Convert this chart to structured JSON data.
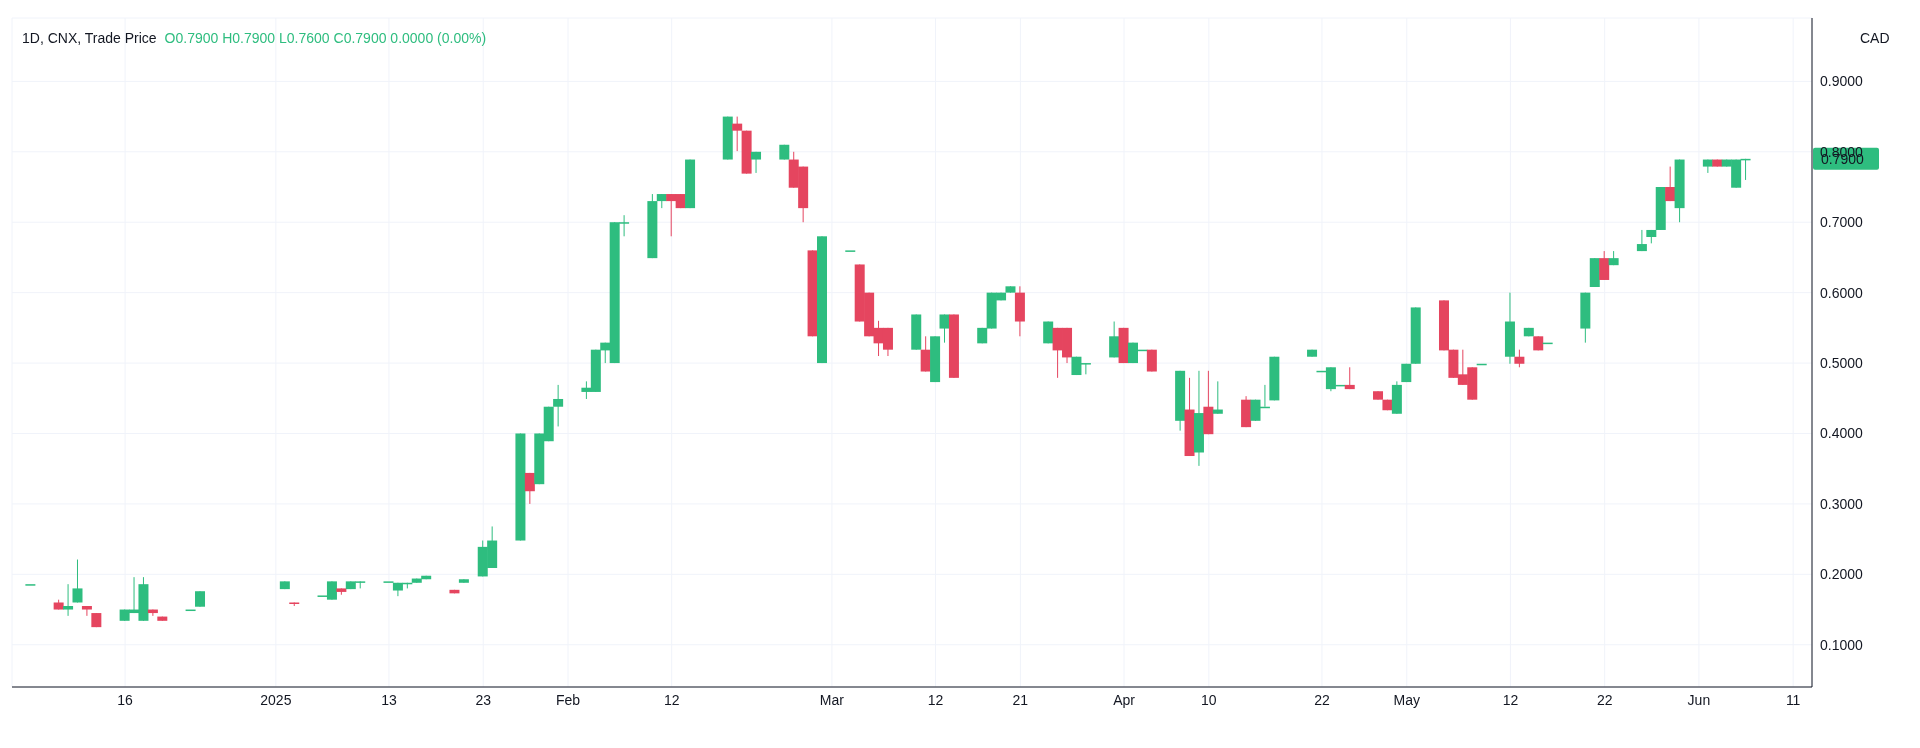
{
  "chart_data": {
    "type": "candlestick",
    "title": "1D, CNX, Trade Price",
    "subtitle": "O0.7900 H0.7900 L0.7600 C0.7900 0.0000 (0.00%)",
    "ylabel": "CAD",
    "x": [
      "2024-12-06",
      "2024-12-09",
      "2024-12-10",
      "2024-12-11",
      "2024-12-12",
      "2024-12-13",
      "2024-12-16",
      "2024-12-17",
      "2024-12-18",
      "2024-12-19",
      "2024-12-20",
      "2024-12-23",
      "2024-12-24",
      "2025-01-02",
      "2025-01-03",
      "2025-01-06",
      "2025-01-07",
      "2025-01-08",
      "2025-01-09",
      "2025-01-10",
      "2025-01-13",
      "2025-01-14",
      "2025-01-15",
      "2025-01-16",
      "2025-01-17",
      "2025-01-20",
      "2025-01-21",
      "2025-01-23",
      "2025-01-24",
      "2025-01-27",
      "2025-01-28",
      "2025-01-29",
      "2025-01-30",
      "2025-01-31",
      "2025-02-03",
      "2025-02-04",
      "2025-02-05",
      "2025-02-06",
      "2025-02-07",
      "2025-02-10",
      "2025-02-11",
      "2025-02-12",
      "2025-02-13",
      "2025-02-14",
      "2025-02-18",
      "2025-02-19",
      "2025-02-20",
      "2025-02-21",
      "2025-02-24",
      "2025-02-25",
      "2025-02-26",
      "2025-02-27",
      "2025-02-28",
      "2025-03-03",
      "2025-03-04",
      "2025-03-05",
      "2025-03-06",
      "2025-03-07",
      "2025-03-10",
      "2025-03-11",
      "2025-03-12",
      "2025-03-13",
      "2025-03-14",
      "2025-03-17",
      "2025-03-18",
      "2025-03-19",
      "2025-03-20",
      "2025-03-21",
      "2025-03-24",
      "2025-03-25",
      "2025-03-26",
      "2025-03-27",
      "2025-03-28",
      "2025-03-31",
      "2025-04-01",
      "2025-04-02",
      "2025-04-03",
      "2025-04-04",
      "2025-04-07",
      "2025-04-08",
      "2025-04-09",
      "2025-04-10",
      "2025-04-11",
      "2025-04-14",
      "2025-04-15",
      "2025-04-16",
      "2025-04-17",
      "2025-04-21",
      "2025-04-22",
      "2025-04-23",
      "2025-04-24",
      "2025-04-25",
      "2025-04-28",
      "2025-04-29",
      "2025-04-30",
      "2025-05-01",
      "2025-05-02",
      "2025-05-05",
      "2025-05-06",
      "2025-05-07",
      "2025-05-08",
      "2025-05-09",
      "2025-05-12",
      "2025-05-13",
      "2025-05-14",
      "2025-05-15",
      "2025-05-16",
      "2025-05-20",
      "2025-05-21",
      "2025-05-22",
      "2025-05-23",
      "2025-05-26",
      "2025-05-27",
      "2025-05-28",
      "2025-05-29",
      "2025-05-30",
      "2025-06-02",
      "2025-06-03",
      "2025-06-04",
      "2025-06-05",
      "2025-06-06"
    ],
    "ohlc": [
      [
        0.186,
        0.186,
        0.186,
        0.186
      ],
      [
        0.16,
        0.164,
        0.15,
        0.15
      ],
      [
        0.15,
        0.186,
        0.141,
        0.155
      ],
      [
        0.16,
        0.221,
        0.16,
        0.18
      ],
      [
        0.155,
        0.155,
        0.141,
        0.15
      ],
      [
        0.145,
        0.145,
        0.125,
        0.125
      ],
      [
        0.134,
        0.15,
        0.134,
        0.15
      ],
      [
        0.145,
        0.196,
        0.145,
        0.15
      ],
      [
        0.134,
        0.196,
        0.134,
        0.186
      ],
      [
        0.15,
        0.15,
        0.141,
        0.145
      ],
      [
        0.14,
        0.14,
        0.134,
        0.134
      ],
      [
        0.15,
        0.15,
        0.15,
        0.15
      ],
      [
        0.154,
        0.176,
        0.154,
        0.176
      ],
      [
        0.179,
        0.19,
        0.179,
        0.19
      ],
      [
        0.16,
        0.16,
        0.155,
        0.158
      ],
      [
        0.17,
        0.17,
        0.17,
        0.17
      ],
      [
        0.164,
        0.19,
        0.164,
        0.19
      ],
      [
        0.18,
        0.18,
        0.171,
        0.175
      ],
      [
        0.179,
        0.19,
        0.179,
        0.19
      ],
      [
        0.19,
        0.19,
        0.18,
        0.19
      ],
      [
        0.19,
        0.19,
        0.19,
        0.19
      ],
      [
        0.177,
        0.188,
        0.169,
        0.188
      ],
      [
        0.188,
        0.188,
        0.18,
        0.188
      ],
      [
        0.188,
        0.194,
        0.188,
        0.194
      ],
      [
        0.193,
        0.198,
        0.193,
        0.198
      ],
      [
        0.178,
        0.178,
        0.173,
        0.173
      ],
      [
        0.188,
        0.193,
        0.188,
        0.193
      ],
      [
        0.197,
        0.248,
        0.197,
        0.239
      ],
      [
        0.209,
        0.268,
        0.209,
        0.248
      ],
      [
        0.248,
        0.4,
        0.248,
        0.4
      ],
      [
        0.344,
        0.344,
        0.3,
        0.318
      ],
      [
        0.328,
        0.4,
        0.328,
        0.4
      ],
      [
        0.389,
        0.438,
        0.389,
        0.438
      ],
      [
        0.438,
        0.469,
        0.41,
        0.449
      ],
      [
        0.459,
        0.474,
        0.449,
        0.465
      ],
      [
        0.459,
        0.519,
        0.459,
        0.519
      ],
      [
        0.518,
        0.529,
        0.5,
        0.529
      ],
      [
        0.5,
        0.7,
        0.5,
        0.7
      ],
      [
        0.7,
        0.71,
        0.68,
        0.7
      ],
      [
        0.649,
        0.74,
        0.649,
        0.73
      ],
      [
        0.73,
        0.74,
        0.72,
        0.74
      ],
      [
        0.74,
        0.74,
        0.68,
        0.73
      ],
      [
        0.74,
        0.74,
        0.72,
        0.72
      ],
      [
        0.72,
        0.789,
        0.72,
        0.789
      ],
      [
        0.789,
        0.85,
        0.789,
        0.85
      ],
      [
        0.84,
        0.85,
        0.801,
        0.83
      ],
      [
        0.83,
        0.83,
        0.769,
        0.769
      ],
      [
        0.789,
        0.8,
        0.77,
        0.8
      ],
      [
        0.789,
        0.81,
        0.789,
        0.81
      ],
      [
        0.789,
        0.8,
        0.749,
        0.749
      ],
      [
        0.779,
        0.779,
        0.7,
        0.72
      ],
      [
        0.66,
        0.66,
        0.538,
        0.538
      ],
      [
        0.5,
        0.68,
        0.5,
        0.68
      ],
      [
        0.66,
        0.66,
        0.66,
        0.66
      ],
      [
        0.64,
        0.64,
        0.559,
        0.559
      ],
      [
        0.6,
        0.6,
        0.538,
        0.538
      ],
      [
        0.55,
        0.56,
        0.51,
        0.528
      ],
      [
        0.55,
        0.55,
        0.51,
        0.519
      ],
      [
        0.519,
        0.569,
        0.519,
        0.569
      ],
      [
        0.519,
        0.538,
        0.488,
        0.488
      ],
      [
        0.473,
        0.538,
        0.473,
        0.538
      ],
      [
        0.549,
        0.569,
        0.529,
        0.569
      ],
      [
        0.569,
        0.569,
        0.479,
        0.479
      ],
      [
        0.528,
        0.55,
        0.528,
        0.55
      ],
      [
        0.549,
        0.6,
        0.549,
        0.6
      ],
      [
        0.589,
        0.6,
        0.589,
        0.6
      ],
      [
        0.6,
        0.609,
        0.6,
        0.609
      ],
      [
        0.6,
        0.609,
        0.538,
        0.559
      ],
      [
        0.528,
        0.559,
        0.528,
        0.559
      ],
      [
        0.55,
        0.55,
        0.479,
        0.518
      ],
      [
        0.55,
        0.55,
        0.5,
        0.508
      ],
      [
        0.483,
        0.509,
        0.483,
        0.509
      ],
      [
        0.5,
        0.5,
        0.484,
        0.5
      ],
      [
        0.508,
        0.559,
        0.508,
        0.538
      ],
      [
        0.55,
        0.55,
        0.5,
        0.5
      ],
      [
        0.5,
        0.529,
        0.5,
        0.529
      ],
      [
        0.519,
        0.519,
        0.519,
        0.519
      ],
      [
        0.519,
        0.519,
        0.488,
        0.488
      ],
      [
        0.418,
        0.489,
        0.404,
        0.489
      ],
      [
        0.434,
        0.479,
        0.368,
        0.368
      ],
      [
        0.373,
        0.489,
        0.354,
        0.429
      ],
      [
        0.438,
        0.489,
        0.399,
        0.399
      ],
      [
        0.428,
        0.474,
        0.428,
        0.434
      ],
      [
        0.448,
        0.453,
        0.409,
        0.409
      ],
      [
        0.418,
        0.448,
        0.418,
        0.448
      ],
      [
        0.438,
        0.469,
        0.438,
        0.438
      ],
      [
        0.447,
        0.509,
        0.447,
        0.509
      ],
      [
        0.509,
        0.519,
        0.509,
        0.519
      ],
      [
        0.489,
        0.489,
        0.489,
        0.489
      ],
      [
        0.463,
        0.494,
        0.46,
        0.494
      ],
      [
        0.469,
        0.469,
        0.469,
        0.469
      ],
      [
        0.469,
        0.494,
        0.463,
        0.463
      ],
      [
        0.46,
        0.46,
        0.448,
        0.448
      ],
      [
        0.448,
        0.448,
        0.433,
        0.433
      ],
      [
        0.428,
        0.474,
        0.428,
        0.469
      ],
      [
        0.473,
        0.499,
        0.473,
        0.499
      ],
      [
        0.499,
        0.579,
        0.499,
        0.579
      ],
      [
        0.589,
        0.589,
        0.518,
        0.518
      ],
      [
        0.519,
        0.519,
        0.479,
        0.479
      ],
      [
        0.484,
        0.519,
        0.469,
        0.469
      ],
      [
        0.494,
        0.494,
        0.448,
        0.448
      ],
      [
        0.499,
        0.499,
        0.499,
        0.499
      ],
      [
        0.509,
        0.6,
        0.499,
        0.559
      ],
      [
        0.509,
        0.519,
        0.494,
        0.499
      ],
      [
        0.538,
        0.55,
        0.538,
        0.55
      ],
      [
        0.538,
        0.538,
        0.518,
        0.518
      ],
      [
        0.529,
        0.529,
        0.529,
        0.529
      ],
      [
        0.549,
        0.6,
        0.529,
        0.6
      ],
      [
        0.608,
        0.649,
        0.608,
        0.649
      ],
      [
        0.649,
        0.659,
        0.618,
        0.618
      ],
      [
        0.639,
        0.659,
        0.639,
        0.649
      ],
      [
        0.659,
        0.689,
        0.659,
        0.669
      ],
      [
        0.679,
        0.689,
        0.67,
        0.689
      ],
      [
        0.689,
        0.75,
        0.689,
        0.75
      ],
      [
        0.75,
        0.779,
        0.73,
        0.73
      ],
      [
        0.72,
        0.789,
        0.7,
        0.789
      ],
      [
        0.779,
        0.789,
        0.77,
        0.789
      ],
      [
        0.789,
        0.789,
        0.779,
        0.779
      ],
      [
        0.779,
        0.789,
        0.779,
        0.789
      ],
      [
        0.749,
        0.789,
        0.749,
        0.789
      ],
      [
        0.79,
        0.79,
        0.76,
        0.79
      ]
    ],
    "xlim": [
      "2024-12-04",
      "2025-06-13"
    ],
    "xticks": [
      {
        "value": "2024-12-16",
        "label": "16"
      },
      {
        "value": "2025-01-01",
        "label": "2025"
      },
      {
        "value": "2025-01-13",
        "label": "13"
      },
      {
        "value": "2025-01-23",
        "label": "23"
      },
      {
        "value": "2025-02-01",
        "label": "Feb"
      },
      {
        "value": "2025-02-12",
        "label": "12"
      },
      {
        "value": "2025-03-01",
        "label": "Mar"
      },
      {
        "value": "2025-03-12",
        "label": "12"
      },
      {
        "value": "2025-03-21",
        "label": "21"
      },
      {
        "value": "2025-04-01",
        "label": "Apr"
      },
      {
        "value": "2025-04-10",
        "label": "10"
      },
      {
        "value": "2025-04-22",
        "label": "22"
      },
      {
        "value": "2025-05-01",
        "label": "May"
      },
      {
        "value": "2025-05-12",
        "label": "12"
      },
      {
        "value": "2025-05-22",
        "label": "22"
      },
      {
        "value": "2025-06-01",
        "label": "Jun"
      },
      {
        "value": "2025-06-11",
        "label": "11"
      }
    ],
    "ylim": [
      0.04,
      0.99
    ],
    "yticks": [
      {
        "value": 0.1,
        "label": "0.1000"
      },
      {
        "value": 0.2,
        "label": "0.2000"
      },
      {
        "value": 0.3,
        "label": "0.3000"
      },
      {
        "value": 0.4,
        "label": "0.4000"
      },
      {
        "value": 0.5,
        "label": "0.5000"
      },
      {
        "value": 0.6,
        "label": "0.6000"
      },
      {
        "value": 0.7,
        "label": "0.7000"
      },
      {
        "value": 0.8,
        "label": "0.8000"
      },
      {
        "value": 0.9,
        "label": "0.9000"
      }
    ],
    "annotations": [
      "0.7900"
    ],
    "grid": true
  }
}
